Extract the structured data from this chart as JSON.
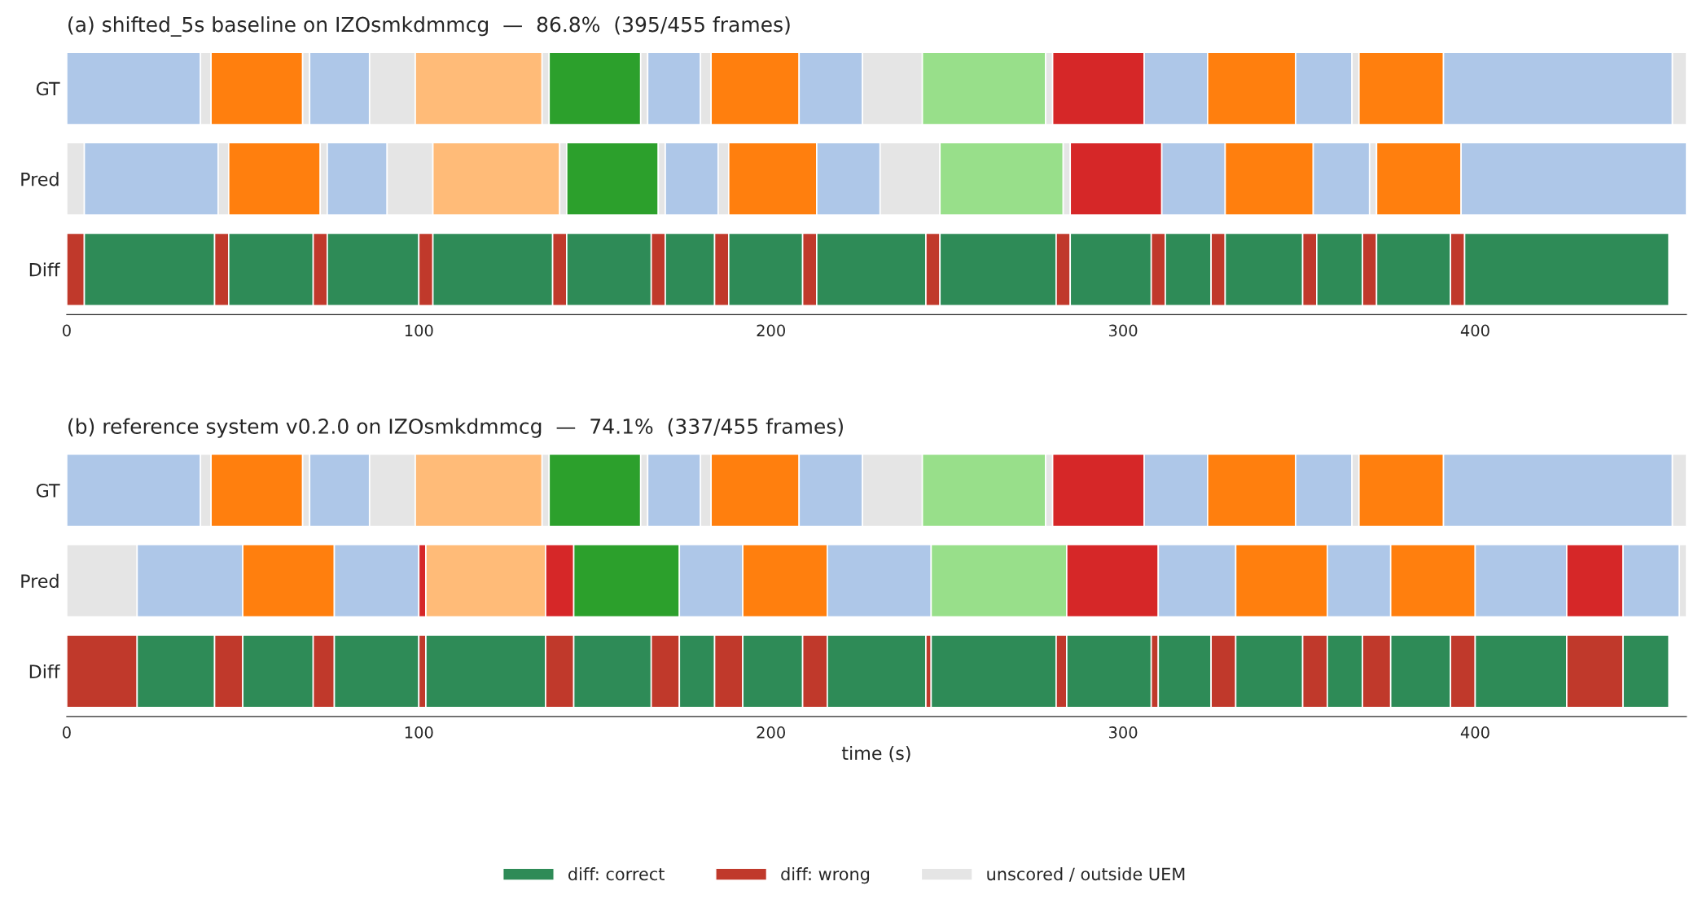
{
  "chart_data": [
    {
      "type": "bar",
      "orientation": "horizontal",
      "stacked": true,
      "title": "(a) shifted_5s baseline on IZOsmkdmmcg  —  86.8%  (395/455 frames)",
      "categories": [
        "GT",
        "Pred",
        "Diff"
      ],
      "xlim": [
        0,
        460
      ],
      "xticks": [
        0,
        100,
        200,
        300,
        400
      ],
      "series": [
        {
          "values": [
            38,
            5,
            5
          ],
          "colors": [
            "#aec7e8",
            "#e5e5e5",
            "#c0392b"
          ]
        },
        {
          "values": [
            3,
            38,
            37
          ],
          "colors": [
            "#e5e5e5",
            "#aec7e8",
            "#2e8b57"
          ]
        },
        {
          "values": [
            26,
            3,
            4
          ],
          "colors": [
            "#ff7f0e",
            "#e5e5e5",
            "#c0392b"
          ]
        },
        {
          "values": [
            2,
            26,
            24
          ],
          "colors": [
            "#e5e5e5",
            "#ff7f0e",
            "#2e8b57"
          ]
        },
        {
          "values": [
            17,
            2,
            4
          ],
          "colors": [
            "#aec7e8",
            "#e5e5e5",
            "#c0392b"
          ]
        },
        {
          "values": [
            13,
            17,
            26
          ],
          "colors": [
            "#e5e5e5",
            "#aec7e8",
            "#2e8b57"
          ]
        },
        {
          "values": [
            36,
            13,
            4
          ],
          "colors": [
            "#ffbb78",
            "#e5e5e5",
            "#c0392b"
          ]
        },
        {
          "values": [
            2,
            36,
            34
          ],
          "colors": [
            "#e5e5e5",
            "#ffbb78",
            "#2e8b57"
          ]
        },
        {
          "values": [
            26,
            2,
            4
          ],
          "colors": [
            "#2ca02c",
            "#e5e5e5",
            "#c0392b"
          ]
        },
        {
          "values": [
            2,
            26,
            24
          ],
          "colors": [
            "#e5e5e5",
            "#2ca02c",
            "#2e8b57"
          ]
        },
        {
          "values": [
            15,
            2,
            4
          ],
          "colors": [
            "#aec7e8",
            "#e5e5e5",
            "#c0392b"
          ]
        },
        {
          "values": [
            3,
            15,
            14
          ],
          "colors": [
            "#e5e5e5",
            "#aec7e8",
            "#2e8b57"
          ]
        },
        {
          "values": [
            25,
            3,
            4
          ],
          "colors": [
            "#ff7f0e",
            "#e5e5e5",
            "#c0392b"
          ]
        },
        {
          "values": [
            18,
            25,
            21
          ],
          "colors": [
            "#aec7e8",
            "#ff7f0e",
            "#2e8b57"
          ]
        },
        {
          "values": [
            17,
            18,
            4
          ],
          "colors": [
            "#e5e5e5",
            "#aec7e8",
            "#c0392b"
          ]
        },
        {
          "values": [
            35,
            17,
            31
          ],
          "colors": [
            "#98df8a",
            "#e5e5e5",
            "#2e8b57"
          ]
        },
        {
          "values": [
            2,
            35,
            4
          ],
          "colors": [
            "#e5e5e5",
            "#98df8a",
            "#c0392b"
          ]
        },
        {
          "values": [
            26,
            2,
            33
          ],
          "colors": [
            "#d62728",
            "#e5e5e5",
            "#2e8b57"
          ]
        },
        {
          "values": [
            18,
            26,
            4
          ],
          "colors": [
            "#aec7e8",
            "#d62728",
            "#c0392b"
          ]
        },
        {
          "values": [
            25,
            18,
            23
          ],
          "colors": [
            "#ff7f0e",
            "#aec7e8",
            "#2e8b57"
          ]
        },
        {
          "values": [
            16,
            25,
            4
          ],
          "colors": [
            "#aec7e8",
            "#ff7f0e",
            "#c0392b"
          ]
        },
        {
          "values": [
            2,
            16,
            13
          ],
          "colors": [
            "#e5e5e5",
            "#aec7e8",
            "#2e8b57"
          ]
        },
        {
          "values": [
            24,
            2,
            4
          ],
          "colors": [
            "#ff7f0e",
            "#e5e5e5",
            "#c0392b"
          ]
        },
        {
          "values": [
            65,
            24,
            22
          ],
          "colors": [
            "#aec7e8",
            "#ff7f0e",
            "#2e8b57"
          ]
        },
        {
          "values": [
            4,
            64,
            4
          ],
          "colors": [
            "#e5e5e5",
            "#aec7e8",
            "#c0392b"
          ]
        },
        {
          "values": [
            null,
            null,
            13
          ],
          "colors": [
            null,
            null,
            "#2e8b57"
          ]
        },
        {
          "values": [
            null,
            null,
            4
          ],
          "colors": [
            null,
            null,
            "#c0392b"
          ]
        },
        {
          "values": [
            null,
            null,
            21
          ],
          "colors": [
            null,
            null,
            "#2e8b57"
          ]
        },
        {
          "values": [
            null,
            null,
            4
          ],
          "colors": [
            null,
            null,
            "#c0392b"
          ]
        },
        {
          "values": [
            null,
            null,
            58
          ],
          "colors": [
            null,
            null,
            "#2e8b57"
          ]
        }
      ]
    },
    {
      "type": "bar",
      "orientation": "horizontal",
      "stacked": true,
      "title": "(b) reference system v0.2.0 on IZOsmkdmmcg  —  74.1%  (337/455 frames)",
      "xlabel": "time (s)",
      "categories": [
        "GT",
        "Pred",
        "Diff"
      ],
      "xlim": [
        0,
        460
      ],
      "xticks": [
        0,
        100,
        200,
        300,
        400
      ],
      "legend": "bottom",
      "series": [
        {
          "values": [
            38,
            20,
            20
          ],
          "colors": [
            "#aec7e8",
            "#e5e5e5",
            "#c0392b"
          ]
        },
        {
          "values": [
            3,
            30,
            22
          ],
          "colors": [
            "#e5e5e5",
            "#aec7e8",
            "#2e8b57"
          ]
        },
        {
          "values": [
            26,
            26,
            8
          ],
          "colors": [
            "#ff7f0e",
            "#ff7f0e",
            "#c0392b"
          ]
        },
        {
          "values": [
            2,
            24,
            20
          ],
          "colors": [
            "#e5e5e5",
            "#aec7e8",
            "#2e8b57"
          ]
        },
        {
          "values": [
            17,
            2,
            6
          ],
          "colors": [
            "#aec7e8",
            "#d62728",
            "#c0392b"
          ]
        },
        {
          "values": [
            13,
            34,
            24
          ],
          "colors": [
            "#e5e5e5",
            "#ffbb78",
            "#2e8b57"
          ]
        },
        {
          "values": [
            36,
            8,
            2
          ],
          "colors": [
            "#ffbb78",
            "#d62728",
            "#c0392b"
          ]
        },
        {
          "values": [
            2,
            30,
            34
          ],
          "colors": [
            "#e5e5e5",
            "#2ca02c",
            "#2e8b57"
          ]
        },
        {
          "values": [
            26,
            18,
            8
          ],
          "colors": [
            "#2ca02c",
            "#aec7e8",
            "#c0392b"
          ]
        },
        {
          "values": [
            2,
            24,
            22
          ],
          "colors": [
            "#e5e5e5",
            "#ff7f0e",
            "#2e8b57"
          ]
        },
        {
          "values": [
            15,
            29.5,
            8
          ],
          "colors": [
            "#aec7e8",
            "#aec7e8",
            "#c0392b"
          ]
        },
        {
          "values": [
            3,
            38.5,
            10
          ],
          "colors": [
            "#e5e5e5",
            "#98df8a",
            "#2e8b57"
          ]
        },
        {
          "values": [
            25,
            26,
            8
          ],
          "colors": [
            "#ff7f0e",
            "#d62728",
            "#c0392b"
          ]
        },
        {
          "values": [
            18,
            22,
            17
          ],
          "colors": [
            "#aec7e8",
            "#aec7e8",
            "#2e8b57"
          ]
        },
        {
          "values": [
            17,
            26,
            7
          ],
          "colors": [
            "#e5e5e5",
            "#ff7f0e",
            "#c0392b"
          ]
        },
        {
          "values": [
            35,
            18,
            28
          ],
          "colors": [
            "#98df8a",
            "#aec7e8",
            "#2e8b57"
          ]
        },
        {
          "values": [
            2,
            24,
            1.5
          ],
          "colors": [
            "#e5e5e5",
            "#ff7f0e",
            "#c0392b"
          ]
        },
        {
          "values": [
            26,
            26,
            35.5
          ],
          "colors": [
            "#d62728",
            "#aec7e8",
            "#2e8b57"
          ]
        },
        {
          "values": [
            18,
            16,
            3
          ],
          "colors": [
            "#aec7e8",
            "#d62728",
            "#c0392b"
          ]
        },
        {
          "values": [
            25,
            16,
            24
          ],
          "colors": [
            "#ff7f0e",
            "#aec7e8",
            "#2e8b57"
          ]
        },
        {
          "values": [
            16,
            2,
            2
          ],
          "colors": [
            "#aec7e8",
            "#e5e5e5",
            "#c0392b"
          ]
        },
        {
          "values": [
            2,
            null,
            15
          ],
          "colors": [
            "#e5e5e5",
            null,
            "#2e8b57"
          ]
        },
        {
          "values": [
            24,
            null,
            7
          ],
          "colors": [
            "#ff7f0e",
            null,
            "#c0392b"
          ]
        },
        {
          "values": [
            65,
            null,
            19
          ],
          "colors": [
            "#aec7e8",
            null,
            "#2e8b57"
          ]
        },
        {
          "values": [
            4,
            null,
            7
          ],
          "colors": [
            "#e5e5e5",
            null,
            "#c0392b"
          ]
        },
        {
          "values": [
            null,
            null,
            10
          ],
          "colors": [
            null,
            null,
            "#2e8b57"
          ]
        },
        {
          "values": [
            null,
            null,
            8
          ],
          "colors": [
            null,
            null,
            "#c0392b"
          ]
        },
        {
          "values": [
            null,
            null,
            17
          ],
          "colors": [
            null,
            null,
            "#2e8b57"
          ]
        },
        {
          "values": [
            null,
            null,
            7
          ],
          "colors": [
            null,
            null,
            "#c0392b"
          ]
        },
        {
          "values": [
            null,
            null,
            26
          ],
          "colors": [
            null,
            null,
            "#2e8b57"
          ]
        },
        {
          "values": [
            null,
            null,
            16
          ],
          "colors": [
            null,
            null,
            "#c0392b"
          ]
        },
        {
          "values": [
            null,
            null,
            13
          ],
          "colors": [
            null,
            null,
            "#2e8b57"
          ]
        },
        {
          "name": "diff: correct",
          "color": "#2e8b57",
          "values": [
            null,
            null,
            null
          ]
        },
        {
          "name": "diff: wrong",
          "color": "#c0392b",
          "values": [
            null,
            null,
            null
          ]
        },
        {
          "name": "unscored / outside UEM",
          "color": "#e5e5e5",
          "values": [
            null,
            null,
            null
          ]
        }
      ]
    }
  ]
}
